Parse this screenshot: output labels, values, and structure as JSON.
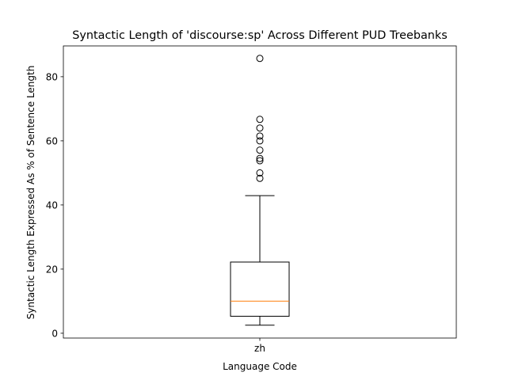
{
  "chart_data": {
    "type": "box",
    "title": "Syntactic Length of 'discourse:sp' Across Different PUD Treebanks",
    "xlabel": "Language Code",
    "ylabel": "Syntactic Length Expressed As % of Sentence Length",
    "categories": [
      "zh"
    ],
    "ylim": [
      -1.5,
      89.6
    ],
    "yticks": [
      0,
      20,
      40,
      60,
      80
    ],
    "grid": false,
    "colors": {
      "box": "#000000",
      "median": "#ff7f0e",
      "flier": "#000000"
    },
    "boxes": [
      {
        "category": "zh",
        "whisker_low": 2.5,
        "q1": 5.3,
        "median": 10.0,
        "q3": 22.2,
        "whisker_high": 42.9,
        "outliers": [
          48.3,
          50.0,
          53.8,
          54.5,
          57.1,
          60.0,
          61.5,
          64.0,
          66.7,
          85.7
        ]
      }
    ]
  }
}
